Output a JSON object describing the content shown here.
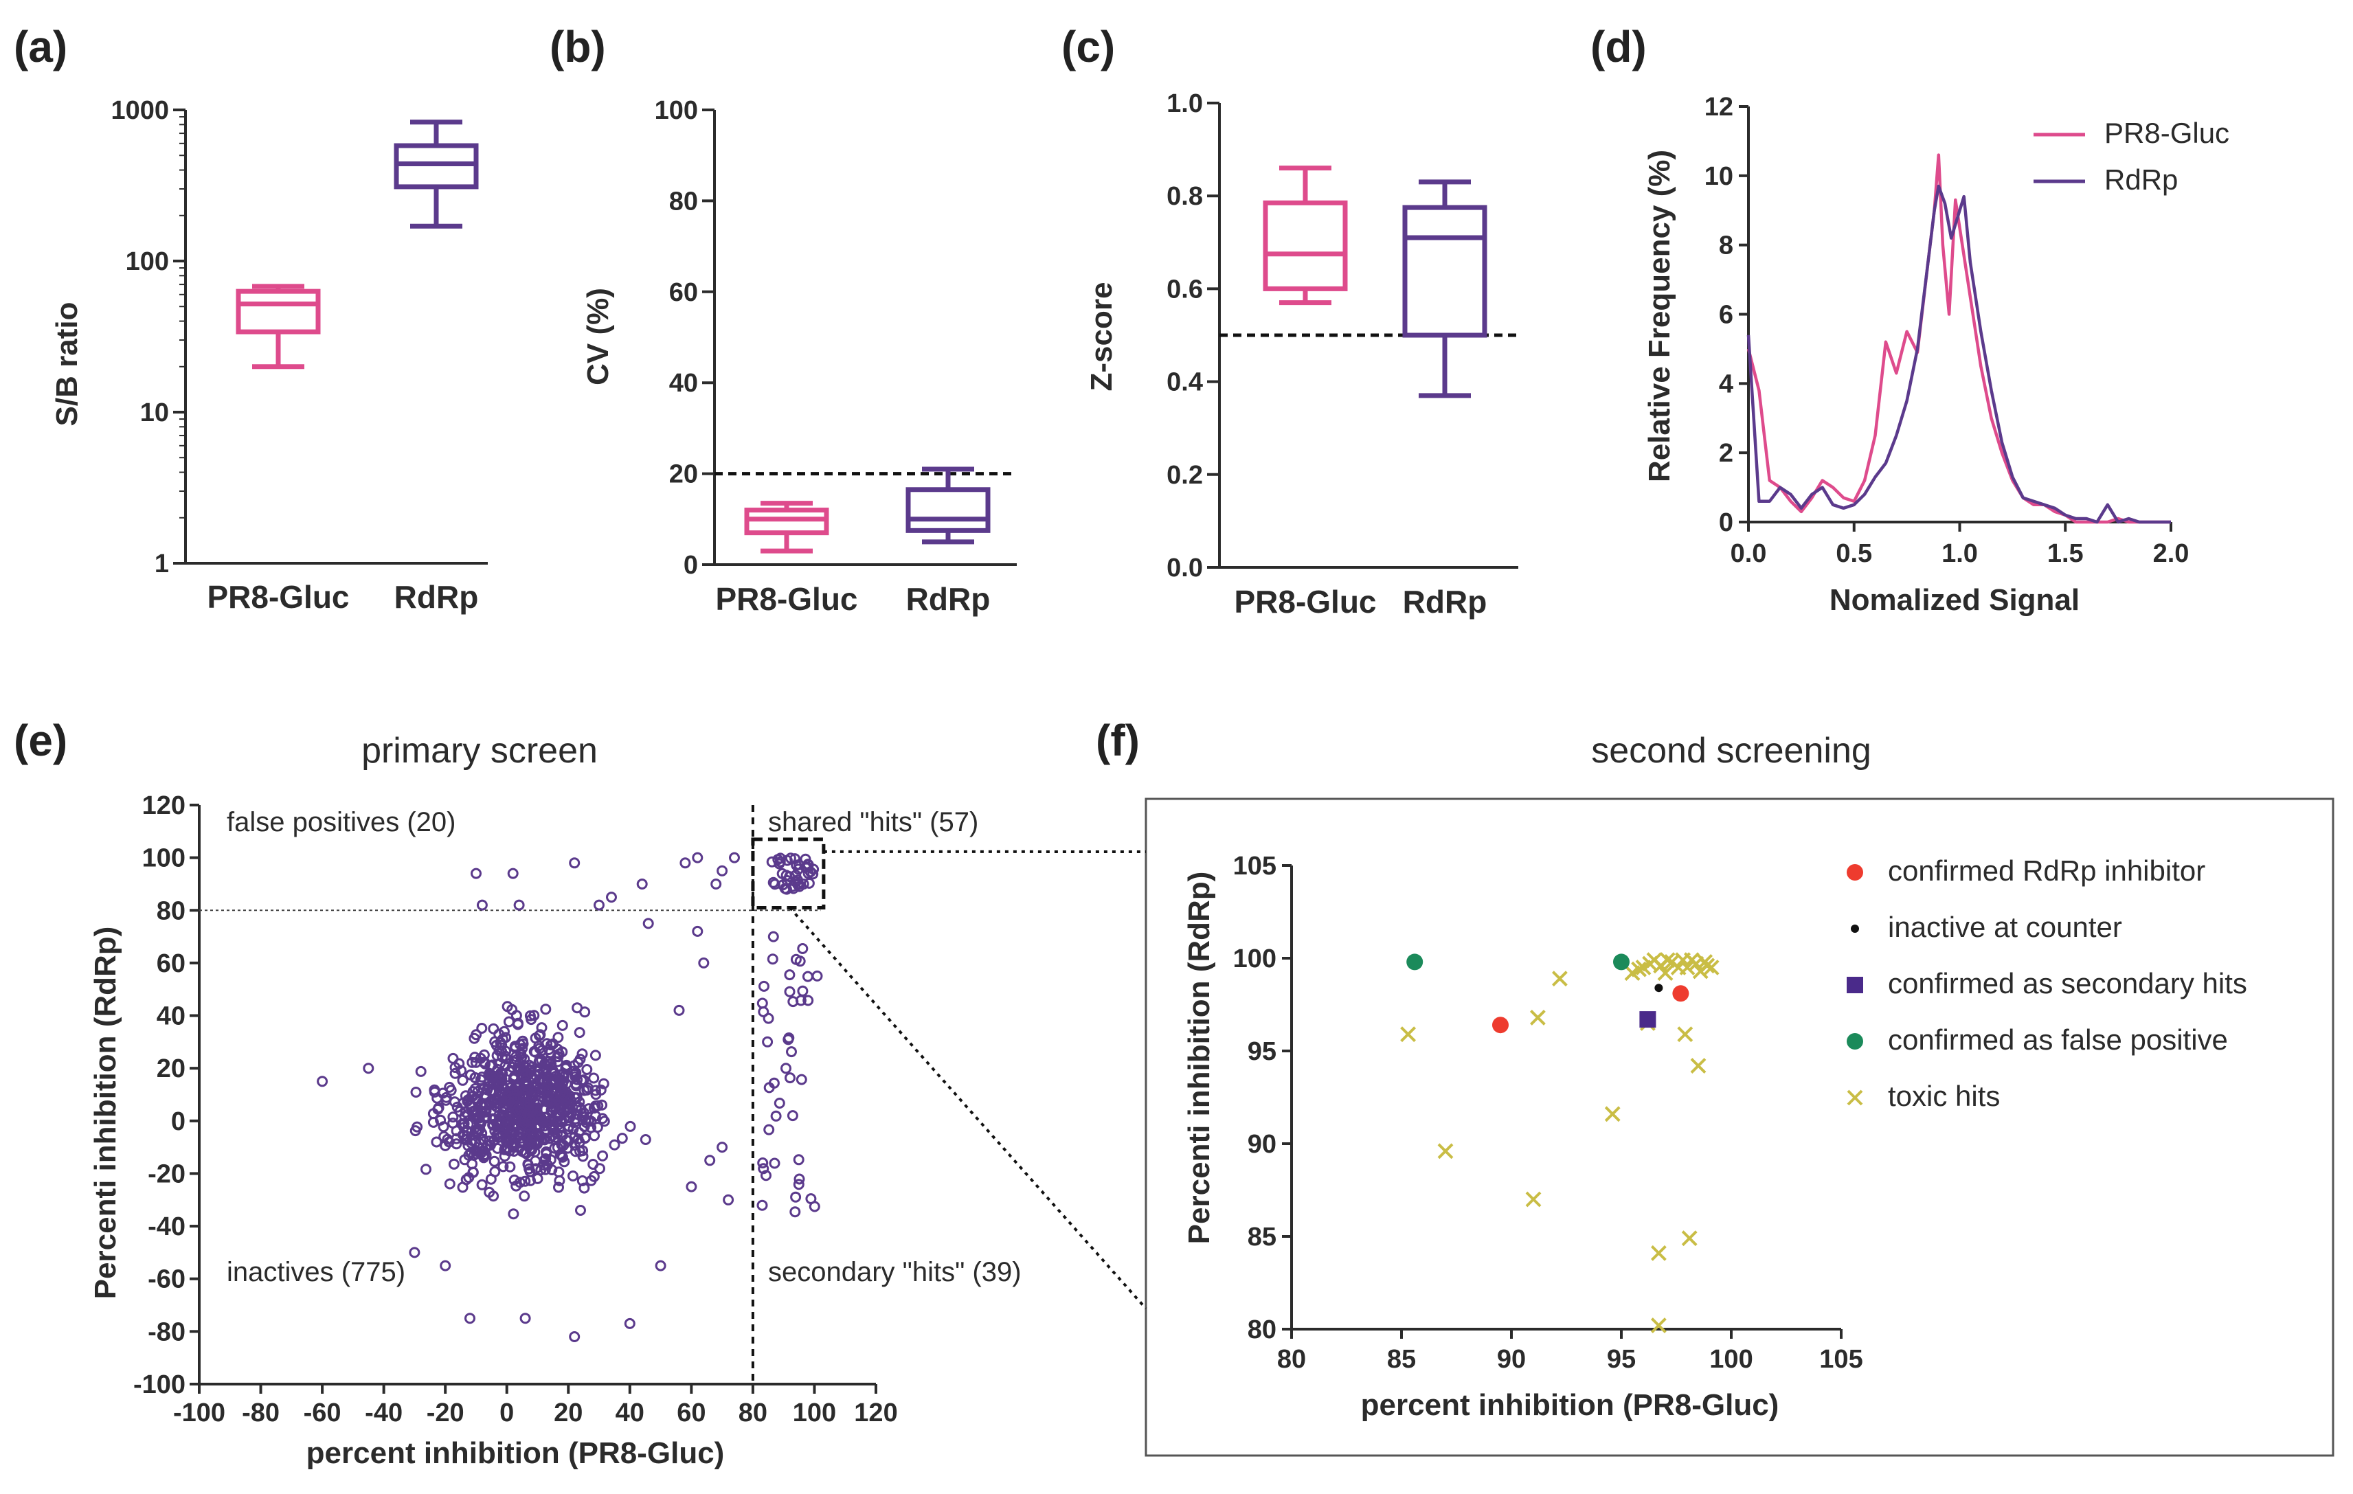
{
  "colors": {
    "pr8": "#de4b8c",
    "rdrp": "#5b3a8c",
    "axis": "#2b2b2b",
    "red": "#ee3b2e",
    "green": "#1b8a5a",
    "olive": "#c9bd45",
    "purple": "#4a2a8a"
  },
  "chart_data": [
    {
      "panel": "(a)",
      "type": "box",
      "ylabel": "S/B ratio",
      "yscale": "log",
      "ylim": [
        1,
        1000
      ],
      "yticks": [
        "1",
        "10",
        "100",
        "1000"
      ],
      "categories": [
        "PR8-Gluc",
        "RdRp"
      ],
      "boxes": [
        {
          "name": "PR8-Gluc",
          "min": 20,
          "q1": 34,
          "median": 52,
          "q3": 63,
          "max": 68
        },
        {
          "name": "RdRp",
          "min": 170,
          "q1": 310,
          "median": 440,
          "q3": 580,
          "max": 830
        }
      ]
    },
    {
      "panel": "(b)",
      "type": "box",
      "ylabel": "CV (%)",
      "ylim": [
        0,
        100
      ],
      "yticks": [
        "0",
        "20",
        "40",
        "60",
        "80",
        "100"
      ],
      "categories": [
        "PR8-Gluc",
        "RdRp"
      ],
      "threshold": 20,
      "boxes": [
        {
          "name": "PR8-Gluc",
          "min": 3,
          "q1": 7,
          "median": 10,
          "q3": 12,
          "max": 13.5
        },
        {
          "name": "RdRp",
          "min": 5,
          "q1": 7.5,
          "median": 10,
          "q3": 16.5,
          "max": 21
        }
      ]
    },
    {
      "panel": "(c)",
      "type": "box",
      "ylabel": "Z-score",
      "ylim": [
        0,
        1.0
      ],
      "yticks": [
        "0.0",
        "0.2",
        "0.4",
        "0.6",
        "0.8",
        "1.0"
      ],
      "categories": [
        "PR8-Gluc",
        "RdRp"
      ],
      "threshold": 0.5,
      "boxes": [
        {
          "name": "PR8-Gluc",
          "min": 0.57,
          "q1": 0.6,
          "median": 0.675,
          "q3": 0.785,
          "max": 0.86
        },
        {
          "name": "RdRp",
          "min": 0.37,
          "q1": 0.5,
          "median": 0.71,
          "q3": 0.775,
          "max": 0.83
        }
      ]
    },
    {
      "panel": "(d)",
      "type": "line",
      "xlabel": "Nomalized Signal",
      "ylabel": "Relative Frequency (%)",
      "xlim": [
        0,
        2.0
      ],
      "ylim": [
        0,
        12
      ],
      "xticks": [
        "0.0",
        "0.5",
        "1.0",
        "1.5",
        "2.0"
      ],
      "yticks": [
        "0",
        "2",
        "4",
        "6",
        "8",
        "10",
        "12"
      ],
      "legend": [
        "PR8-Gluc",
        "RdRp"
      ],
      "series": [
        {
          "name": "PR8-Gluc",
          "x": [
            0,
            0.05,
            0.1,
            0.15,
            0.2,
            0.25,
            0.3,
            0.35,
            0.4,
            0.45,
            0.5,
            0.55,
            0.6,
            0.65,
            0.7,
            0.75,
            0.8,
            0.85,
            0.88,
            0.9,
            0.92,
            0.95,
            0.98,
            1.0,
            1.05,
            1.1,
            1.15,
            1.2,
            1.25,
            1.3,
            1.35,
            1.4,
            1.45,
            1.5,
            1.55,
            1.6,
            1.65,
            1.7,
            1.75,
            1.8,
            1.85,
            1.9,
            1.95,
            2.0
          ],
          "y": [
            5.0,
            3.8,
            1.2,
            1.0,
            0.6,
            0.3,
            0.7,
            1.2,
            1.0,
            0.7,
            0.6,
            1.2,
            2.5,
            5.2,
            4.3,
            5.5,
            4.9,
            7.5,
            9.0,
            10.6,
            8.0,
            6.0,
            9.3,
            8.5,
            6.5,
            4.5,
            3.0,
            2.0,
            1.2,
            0.7,
            0.5,
            0.5,
            0.3,
            0.2,
            0,
            0,
            0,
            0,
            0.1,
            0,
            0,
            0,
            0,
            0
          ]
        },
        {
          "name": "RdRp",
          "x": [
            0,
            0.05,
            0.1,
            0.15,
            0.2,
            0.25,
            0.3,
            0.35,
            0.4,
            0.45,
            0.5,
            0.55,
            0.6,
            0.65,
            0.7,
            0.75,
            0.8,
            0.85,
            0.88,
            0.9,
            0.93,
            0.96,
            1.0,
            1.02,
            1.05,
            1.1,
            1.15,
            1.2,
            1.25,
            1.3,
            1.35,
            1.4,
            1.45,
            1.5,
            1.55,
            1.6,
            1.65,
            1.7,
            1.75,
            1.8,
            1.85,
            1.9,
            1.95,
            2.0
          ],
          "y": [
            5.4,
            0.6,
            0.6,
            1.0,
            0.8,
            0.4,
            0.8,
            1.0,
            0.5,
            0.4,
            0.5,
            0.8,
            1.3,
            1.7,
            2.5,
            3.5,
            5.0,
            7.5,
            9.0,
            9.7,
            9.2,
            8.2,
            9.0,
            9.4,
            7.5,
            5.5,
            3.8,
            2.3,
            1.3,
            0.7,
            0.6,
            0.5,
            0.4,
            0.2,
            0.1,
            0.1,
            0.0,
            0.5,
            0.0,
            0.1,
            0.0,
            0.0,
            0,
            0
          ]
        }
      ]
    },
    {
      "panel": "(e)",
      "type": "scatter",
      "title": "primary screen",
      "xlabel": "percent inhibition (PR8-Gluc)",
      "ylabel": "Percenti inhibition (RdRp)",
      "xlim": [
        -100,
        120
      ],
      "ylim": [
        -100,
        120
      ],
      "xticks": [
        "-100",
        "-80",
        "-60",
        "-40",
        "-20",
        "0",
        "20",
        "40",
        "60",
        "80",
        "100",
        "120"
      ],
      "yticks": [
        "-100",
        "-80",
        "-60",
        "-40",
        "-20",
        "0",
        "20",
        "40",
        "60",
        "80",
        "100",
        "120"
      ],
      "thresholds": {
        "x": 80,
        "y": 80
      },
      "annotations": [
        "false positives (20)",
        "shared \"hits\" (57)",
        "inactives (775)",
        "secondary \"hits\" (39)"
      ]
    },
    {
      "panel": "(f)",
      "type": "scatter",
      "title": "second screening",
      "xlabel": "percent inhibition (PR8-Gluc)",
      "ylabel": "Percenti inhibition (RdRp)",
      "xlim": [
        80,
        105
      ],
      "ylim": [
        80,
        105
      ],
      "xticks": [
        "80",
        "85",
        "90",
        "95",
        "100",
        "105"
      ],
      "yticks": [
        "80",
        "85",
        "90",
        "95",
        "100",
        "105"
      ],
      "legend": [
        "confirmed RdRp inhibitor",
        "inactive at counter",
        "confirmed as secondary hits",
        "confirmed as false positive",
        "toxic hits"
      ],
      "series": [
        {
          "name": "confirmed RdRp inhibitor",
          "marker": "circle",
          "points": [
            [
              89.5,
              96.4
            ],
            [
              97.7,
              98.1
            ]
          ]
        },
        {
          "name": "inactive at counter",
          "marker": "dot",
          "points": [
            [
              96.7,
              98.4
            ]
          ]
        },
        {
          "name": "confirmed as secondary hits",
          "marker": "square",
          "points": [
            [
              96.2,
              96.7
            ]
          ]
        },
        {
          "name": "confirmed as false positive",
          "marker": "circle",
          "points": [
            [
              85.6,
              99.8
            ],
            [
              95.0,
              99.8
            ]
          ]
        },
        {
          "name": "toxic hits",
          "marker": "x",
          "points": [
            [
              85.3,
              95.9
            ],
            [
              87.0,
              89.6
            ],
            [
              91.0,
              87.0
            ],
            [
              91.2,
              96.8
            ],
            [
              92.2,
              98.9
            ],
            [
              94.6,
              91.6
            ],
            [
              96.2,
              96.5
            ],
            [
              96.7,
              84.1
            ],
            [
              96.7,
              80.2
            ],
            [
              97.9,
              95.9
            ],
            [
              98.1,
              84.9
            ],
            [
              98.5,
              94.2
            ],
            [
              95.8,
              99.4
            ],
            [
              96.3,
              99.7
            ],
            [
              96.8,
              99.6
            ],
            [
              97.3,
              99.8
            ],
            [
              97.8,
              99.9
            ],
            [
              98.0,
              99.5
            ],
            [
              98.4,
              99.7
            ],
            [
              98.8,
              99.8
            ],
            [
              99.1,
              99.5
            ],
            [
              95.5,
              99.2
            ],
            [
              96.0,
              99.5
            ],
            [
              97.0,
              99.2
            ],
            [
              97.6,
              99.5
            ],
            [
              98.2,
              99.9
            ],
            [
              98.6,
              99.3
            ],
            [
              97.1,
              99.9
            ],
            [
              96.5,
              99.9
            ],
            [
              98.9,
              99.6
            ]
          ]
        }
      ]
    }
  ]
}
